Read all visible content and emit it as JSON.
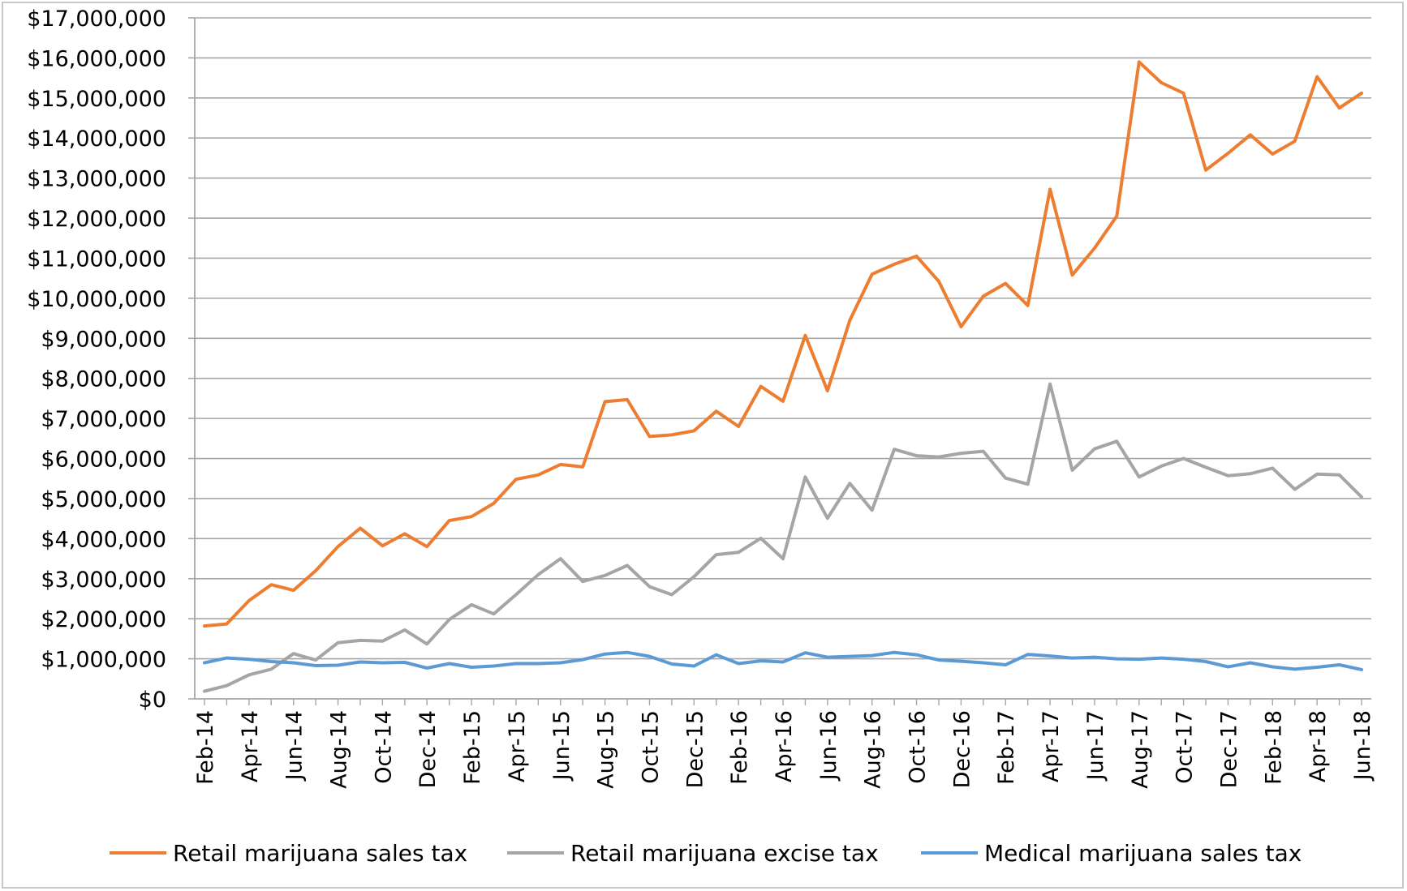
{
  "chart_data": {
    "type": "line",
    "title": "",
    "xlabel": "",
    "ylabel": "",
    "ylim": [
      0,
      17000000
    ],
    "y_ticks": [
      "$0",
      "$1,000,000",
      "$2,000,000",
      "$3,000,000",
      "$4,000,000",
      "$5,000,000",
      "$6,000,000",
      "$7,000,000",
      "$8,000,000",
      "$9,000,000",
      "$10,000,000",
      "$11,000,000",
      "$12,000,000",
      "$13,000,000",
      "$14,000,000",
      "$15,000,000",
      "$16,000,000",
      "$17,000,000"
    ],
    "x_tick_labels": [
      "Feb-14",
      "Apr-14",
      "Jun-14",
      "Aug-14",
      "Oct-14",
      "Dec-14",
      "Feb-15",
      "Apr-15",
      "Jun-15",
      "Aug-15",
      "Oct-15",
      "Dec-15",
      "Feb-16",
      "Apr-16",
      "Jun-16",
      "Aug-16",
      "Oct-16",
      "Dec-16",
      "Feb-17",
      "Apr-17",
      "Jun-17",
      "Aug-17",
      "Oct-17",
      "Dec-17",
      "Feb-18",
      "Apr-18",
      "Jun-18"
    ],
    "grid": true,
    "legend_position": "bottom",
    "x": [
      "Feb-14",
      "Mar-14",
      "Apr-14",
      "May-14",
      "Jun-14",
      "Jul-14",
      "Aug-14",
      "Sep-14",
      "Oct-14",
      "Nov-14",
      "Dec-14",
      "Jan-15",
      "Feb-15",
      "Mar-15",
      "Apr-15",
      "May-15",
      "Jun-15",
      "Jul-15",
      "Aug-15",
      "Sep-15",
      "Oct-15",
      "Nov-15",
      "Dec-15",
      "Jan-16",
      "Feb-16",
      "Mar-16",
      "Apr-16",
      "May-16",
      "Jun-16",
      "Jul-16",
      "Aug-16",
      "Sep-16",
      "Oct-16",
      "Nov-16",
      "Dec-16",
      "Jan-17",
      "Feb-17",
      "Mar-17",
      "Apr-17",
      "May-17",
      "Jun-17",
      "Jul-17",
      "Aug-17",
      "Sep-17",
      "Oct-17",
      "Nov-17",
      "Dec-17",
      "Jan-18",
      "Feb-18",
      "Mar-18",
      "Apr-18",
      "May-18",
      "Jun-18"
    ],
    "series": [
      {
        "name": "Retail marijuana sales tax",
        "color": "#ED7D31",
        "values": [
          1820000,
          1870000,
          2450000,
          2850000,
          2710000,
          3200000,
          3800000,
          4260000,
          3820000,
          4120000,
          3800000,
          4450000,
          4550000,
          4880000,
          5480000,
          5590000,
          5850000,
          5790000,
          7420000,
          7470000,
          6550000,
          6590000,
          6690000,
          7180000,
          6800000,
          7800000,
          7430000,
          9070000,
          7690000,
          9450000,
          10600000,
          10850000,
          11050000,
          10420000,
          9290000,
          10050000,
          10370000,
          9820000,
          12720000,
          10580000,
          11250000,
          12050000,
          15900000,
          15380000,
          15120000,
          13200000,
          13620000,
          14080000,
          13600000,
          13920000,
          15530000,
          14750000,
          15120000
        ]
      },
      {
        "name": "Retail marijuana excise tax",
        "color": "#A5A5A5",
        "values": [
          190000,
          330000,
          600000,
          740000,
          1130000,
          970000,
          1400000,
          1460000,
          1440000,
          1720000,
          1370000,
          1980000,
          2350000,
          2120000,
          2600000,
          3100000,
          3500000,
          2930000,
          3080000,
          3330000,
          2800000,
          2600000,
          3050000,
          3600000,
          3660000,
          4010000,
          3500000,
          5540000,
          4510000,
          5380000,
          4710000,
          6230000,
          6070000,
          6040000,
          6130000,
          6180000,
          5510000,
          5360000,
          7860000,
          5710000,
          6240000,
          6430000,
          5540000,
          5810000,
          6000000,
          5780000,
          5570000,
          5620000,
          5760000,
          5230000,
          5610000,
          5590000,
          5040000
        ]
      },
      {
        "name": "Medical marijuana sales tax",
        "color": "#5B9BD5",
        "values": [
          900000,
          1020000,
          990000,
          930000,
          900000,
          830000,
          840000,
          920000,
          900000,
          910000,
          770000,
          880000,
          790000,
          820000,
          880000,
          880000,
          900000,
          980000,
          1120000,
          1160000,
          1060000,
          870000,
          820000,
          1100000,
          880000,
          950000,
          920000,
          1150000,
          1040000,
          1060000,
          1080000,
          1160000,
          1100000,
          970000,
          940000,
          900000,
          850000,
          1110000,
          1070000,
          1020000,
          1040000,
          1000000,
          990000,
          1020000,
          990000,
          930000,
          800000,
          900000,
          800000,
          740000,
          790000,
          850000,
          730000
        ]
      }
    ]
  }
}
